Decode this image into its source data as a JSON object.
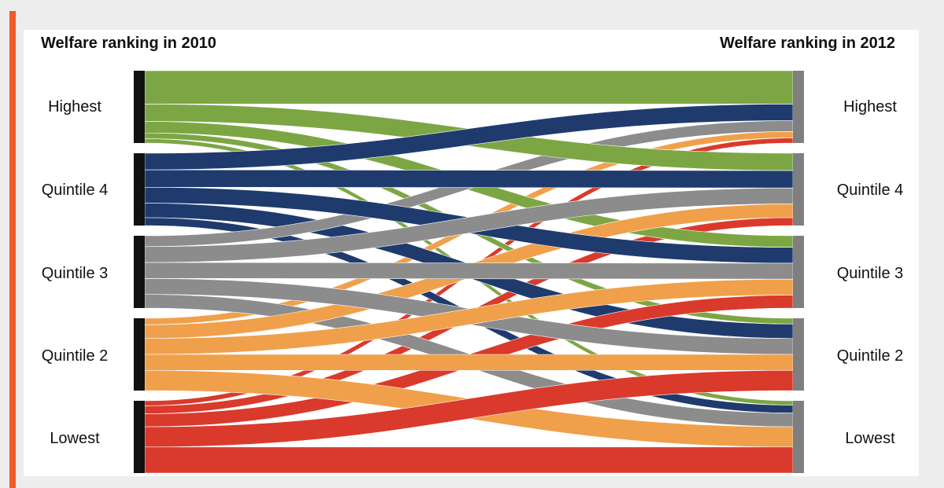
{
  "header": {
    "left_title": "Welfare ranking in 2010",
    "right_title": "Welfare ranking in 2012"
  },
  "colors": {
    "accent": "#f15a2b",
    "Highest": "#7ca644",
    "Quintile 4": "#1f3b6e",
    "Quintile 3": "#8c8c8c",
    "Quintile 2": "#f0a04b",
    "Lowest": "#d93a2c",
    "left_node": "#111111",
    "right_node": "#7f7f7f"
  },
  "chart_data": {
    "type": "sankey",
    "title_left": "Welfare ranking in 2010",
    "title_right": "Welfare ranking in 2012",
    "nodes_left": [
      "Highest",
      "Quintile 4",
      "Quintile 3",
      "Quintile 2",
      "Lowest"
    ],
    "nodes_right": [
      "Highest",
      "Quintile 4",
      "Quintile 3",
      "Quintile 2",
      "Lowest"
    ],
    "flows": [
      {
        "source": "Highest",
        "target": "Highest",
        "value": 46
      },
      {
        "source": "Highest",
        "target": "Quintile 4",
        "value": 24
      },
      {
        "source": "Highest",
        "target": "Quintile 3",
        "value": 16
      },
      {
        "source": "Highest",
        "target": "Quintile 2",
        "value": 8
      },
      {
        "source": "Highest",
        "target": "Lowest",
        "value": 6
      },
      {
        "source": "Quintile 4",
        "target": "Highest",
        "value": 23
      },
      {
        "source": "Quintile 4",
        "target": "Quintile 4",
        "value": 24
      },
      {
        "source": "Quintile 4",
        "target": "Quintile 3",
        "value": 22
      },
      {
        "source": "Quintile 4",
        "target": "Quintile 2",
        "value": 20
      },
      {
        "source": "Quintile 4",
        "target": "Lowest",
        "value": 11
      },
      {
        "source": "Quintile 3",
        "target": "Highest",
        "value": 15
      },
      {
        "source": "Quintile 3",
        "target": "Quintile 4",
        "value": 22
      },
      {
        "source": "Quintile 3",
        "target": "Quintile 3",
        "value": 22
      },
      {
        "source": "Quintile 3",
        "target": "Quintile 2",
        "value": 22
      },
      {
        "source": "Quintile 3",
        "target": "Lowest",
        "value": 19
      },
      {
        "source": "Quintile 2",
        "target": "Highest",
        "value": 9
      },
      {
        "source": "Quintile 2",
        "target": "Quintile 4",
        "value": 19
      },
      {
        "source": "Quintile 2",
        "target": "Quintile 3",
        "value": 22
      },
      {
        "source": "Quintile 2",
        "target": "Quintile 2",
        "value": 22
      },
      {
        "source": "Quintile 2",
        "target": "Lowest",
        "value": 28
      },
      {
        "source": "Lowest",
        "target": "Highest",
        "value": 7
      },
      {
        "source": "Lowest",
        "target": "Quintile 4",
        "value": 11
      },
      {
        "source": "Lowest",
        "target": "Quintile 3",
        "value": 18
      },
      {
        "source": "Lowest",
        "target": "Quintile 2",
        "value": 28
      },
      {
        "source": "Lowest",
        "target": "Lowest",
        "value": 36
      }
    ]
  }
}
